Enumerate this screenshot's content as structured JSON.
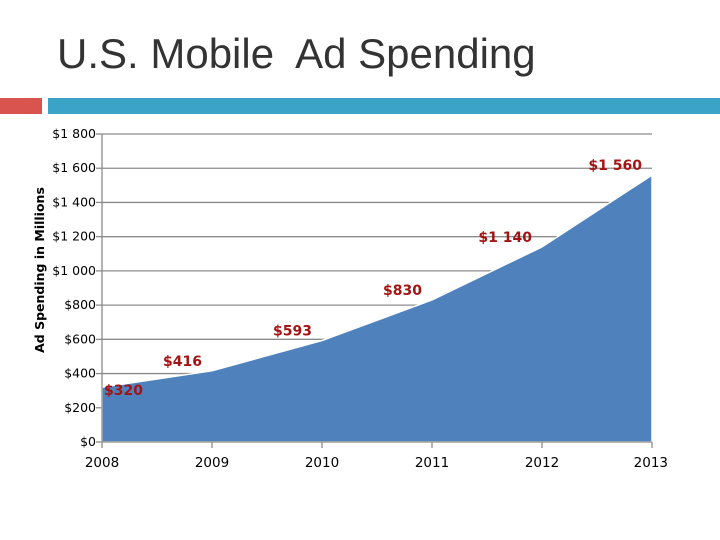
{
  "slide": {
    "title": "U.S. Mobile  Ad Spending",
    "accent_red": "#d9534f",
    "accent_blue": "#3aa3c7"
  },
  "chart_data": {
    "type": "area",
    "title": "",
    "xlabel": "",
    "ylabel": "Ad Spending in Millions",
    "categories": [
      "2008",
      "2009",
      "2010",
      "2011",
      "2012",
      "2013"
    ],
    "series": [
      {
        "values": [
          320,
          416,
          593,
          830,
          1140,
          1560
        ],
        "data_labels": [
          "$320",
          "$416",
          "$593",
          "$830",
          "$1 140",
          "$1 560"
        ],
        "color": "#4f81bd"
      }
    ],
    "ylim": [
      0,
      1800
    ],
    "yticks": [
      0,
      200,
      400,
      600,
      800,
      1000,
      1200,
      1400,
      1600,
      1800
    ],
    "ytick_labels": [
      "$0",
      "$200",
      "$400",
      "$600",
      "$800",
      "$1 000",
      "$1 200",
      "$1 400",
      "$1 600",
      "$1 800"
    ],
    "grid": true,
    "legend": "none"
  }
}
